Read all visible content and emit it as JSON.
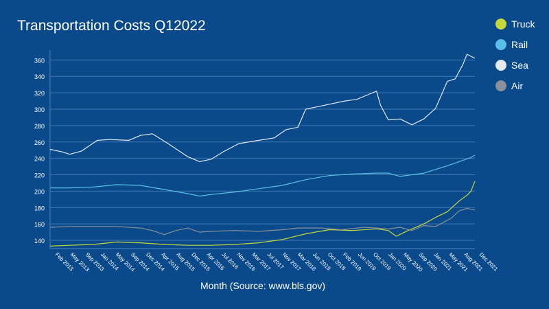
{
  "chart_data": {
    "type": "line",
    "title": "Transportation Costs Q12022",
    "xlabel": "Month (Source: www.bls.gov)",
    "ylabel": "",
    "ylim": [
      130,
      372
    ],
    "yticks": [
      140,
      160,
      180,
      200,
      220,
      240,
      260,
      280,
      300,
      320,
      340,
      360
    ],
    "grid": "horizontal",
    "legend_position": "right",
    "x_start": "2013-01",
    "x_end": "2022-01",
    "x_tick_labels": [
      "Feb 2013",
      "May 2013",
      "Sep 2013",
      "Jan 2014",
      "May 2014",
      "Sep 2014",
      "Dec 2014",
      "Apr 2015",
      "Aug 2015",
      "Dec 2015",
      "Apr 2016",
      "Jul 2016",
      "Nov 2016",
      "Mar 2017",
      "Jul 2017",
      "Nov 2017",
      "Mar 2018",
      "Jun 2018",
      "Oct 2018",
      "Feb 2019",
      "Jun 2019",
      "Oct 2019",
      "Jan 2020",
      "May 2020",
      "Sep 2020",
      "Jan 2021",
      "May 2021",
      "Aug 2021",
      "Dec 2021"
    ],
    "series": [
      {
        "name": "Truck",
        "color": "#c5d93a",
        "points": [
          [
            "2013-01",
            133
          ],
          [
            "2013-06",
            134
          ],
          [
            "2013-12",
            135
          ],
          [
            "2014-06",
            138
          ],
          [
            "2014-12",
            137
          ],
          [
            "2015-06",
            135
          ],
          [
            "2015-12",
            134
          ],
          [
            "2016-06",
            134
          ],
          [
            "2016-12",
            135
          ],
          [
            "2017-06",
            137
          ],
          [
            "2017-12",
            141
          ],
          [
            "2018-06",
            148
          ],
          [
            "2018-12",
            153
          ],
          [
            "2019-06",
            152
          ],
          [
            "2019-12",
            154
          ],
          [
            "2020-03",
            152
          ],
          [
            "2020-05",
            145
          ],
          [
            "2020-08",
            152
          ],
          [
            "2020-12",
            160
          ],
          [
            "2021-03",
            168
          ],
          [
            "2021-06",
            175
          ],
          [
            "2021-09",
            188
          ],
          [
            "2021-11",
            195
          ],
          [
            "2021-12",
            200
          ],
          [
            "2022-01",
            212
          ]
        ]
      },
      {
        "name": "Rail",
        "color": "#5bc0e8",
        "points": [
          [
            "2013-01",
            204
          ],
          [
            "2013-06",
            204
          ],
          [
            "2013-12",
            205
          ],
          [
            "2014-06",
            208
          ],
          [
            "2014-12",
            207
          ],
          [
            "2015-06",
            202
          ],
          [
            "2015-12",
            197
          ],
          [
            "2016-03",
            194
          ],
          [
            "2016-06",
            196
          ],
          [
            "2016-12",
            199
          ],
          [
            "2017-06",
            203
          ],
          [
            "2017-12",
            207
          ],
          [
            "2018-06",
            214
          ],
          [
            "2018-12",
            219
          ],
          [
            "2019-06",
            221
          ],
          [
            "2019-12",
            222
          ],
          [
            "2020-03",
            222
          ],
          [
            "2020-06",
            218
          ],
          [
            "2020-12",
            222
          ],
          [
            "2021-06",
            231
          ],
          [
            "2021-09",
            236
          ],
          [
            "2021-12",
            241
          ],
          [
            "2022-01",
            244
          ]
        ]
      },
      {
        "name": "Sea",
        "color": "#e6eaf0",
        "points": [
          [
            "2013-01",
            251
          ],
          [
            "2013-04",
            248
          ],
          [
            "2013-06",
            245
          ],
          [
            "2013-09",
            249
          ],
          [
            "2014-01",
            262
          ],
          [
            "2014-04",
            263
          ],
          [
            "2014-09",
            262
          ],
          [
            "2014-12",
            268
          ],
          [
            "2015-03",
            270
          ],
          [
            "2015-07",
            258
          ],
          [
            "2015-12",
            242
          ],
          [
            "2016-03",
            236
          ],
          [
            "2016-06",
            239
          ],
          [
            "2016-09",
            248
          ],
          [
            "2017-01",
            258
          ],
          [
            "2017-06",
            262
          ],
          [
            "2017-10",
            265
          ],
          [
            "2018-01",
            275
          ],
          [
            "2018-04",
            278
          ],
          [
            "2018-06",
            300
          ],
          [
            "2018-09",
            303
          ],
          [
            "2018-12",
            306
          ],
          [
            "2019-04",
            310
          ],
          [
            "2019-07",
            312
          ],
          [
            "2019-10",
            318
          ],
          [
            "2019-12",
            322
          ],
          [
            "2020-01",
            305
          ],
          [
            "2020-03",
            287
          ],
          [
            "2020-06",
            288
          ],
          [
            "2020-09",
            281
          ],
          [
            "2020-12",
            288
          ],
          [
            "2021-03",
            301
          ],
          [
            "2021-06",
            334
          ],
          [
            "2021-08",
            337
          ],
          [
            "2021-10",
            355
          ],
          [
            "2021-11",
            367
          ],
          [
            "2022-01",
            362
          ]
        ]
      },
      {
        "name": "Air",
        "color": "#8a9099",
        "points": [
          [
            "2013-01",
            156
          ],
          [
            "2013-06",
            157
          ],
          [
            "2013-12",
            157
          ],
          [
            "2014-06",
            157
          ],
          [
            "2014-12",
            155
          ],
          [
            "2015-03",
            152
          ],
          [
            "2015-06",
            147
          ],
          [
            "2015-09",
            152
          ],
          [
            "2015-12",
            155
          ],
          [
            "2016-03",
            150
          ],
          [
            "2016-06",
            151
          ],
          [
            "2016-12",
            152
          ],
          [
            "2017-06",
            151
          ],
          [
            "2017-12",
            153
          ],
          [
            "2018-04",
            155
          ],
          [
            "2018-10",
            155
          ],
          [
            "2019-03",
            153
          ],
          [
            "2019-09",
            156
          ],
          [
            "2019-12",
            155
          ],
          [
            "2020-03",
            154
          ],
          [
            "2020-06",
            156
          ],
          [
            "2020-09",
            152
          ],
          [
            "2020-12",
            158
          ],
          [
            "2021-03",
            157
          ],
          [
            "2021-05",
            162
          ],
          [
            "2021-07",
            167
          ],
          [
            "2021-09",
            176
          ],
          [
            "2021-11",
            179
          ],
          [
            "2022-01",
            177
          ]
        ]
      }
    ]
  }
}
